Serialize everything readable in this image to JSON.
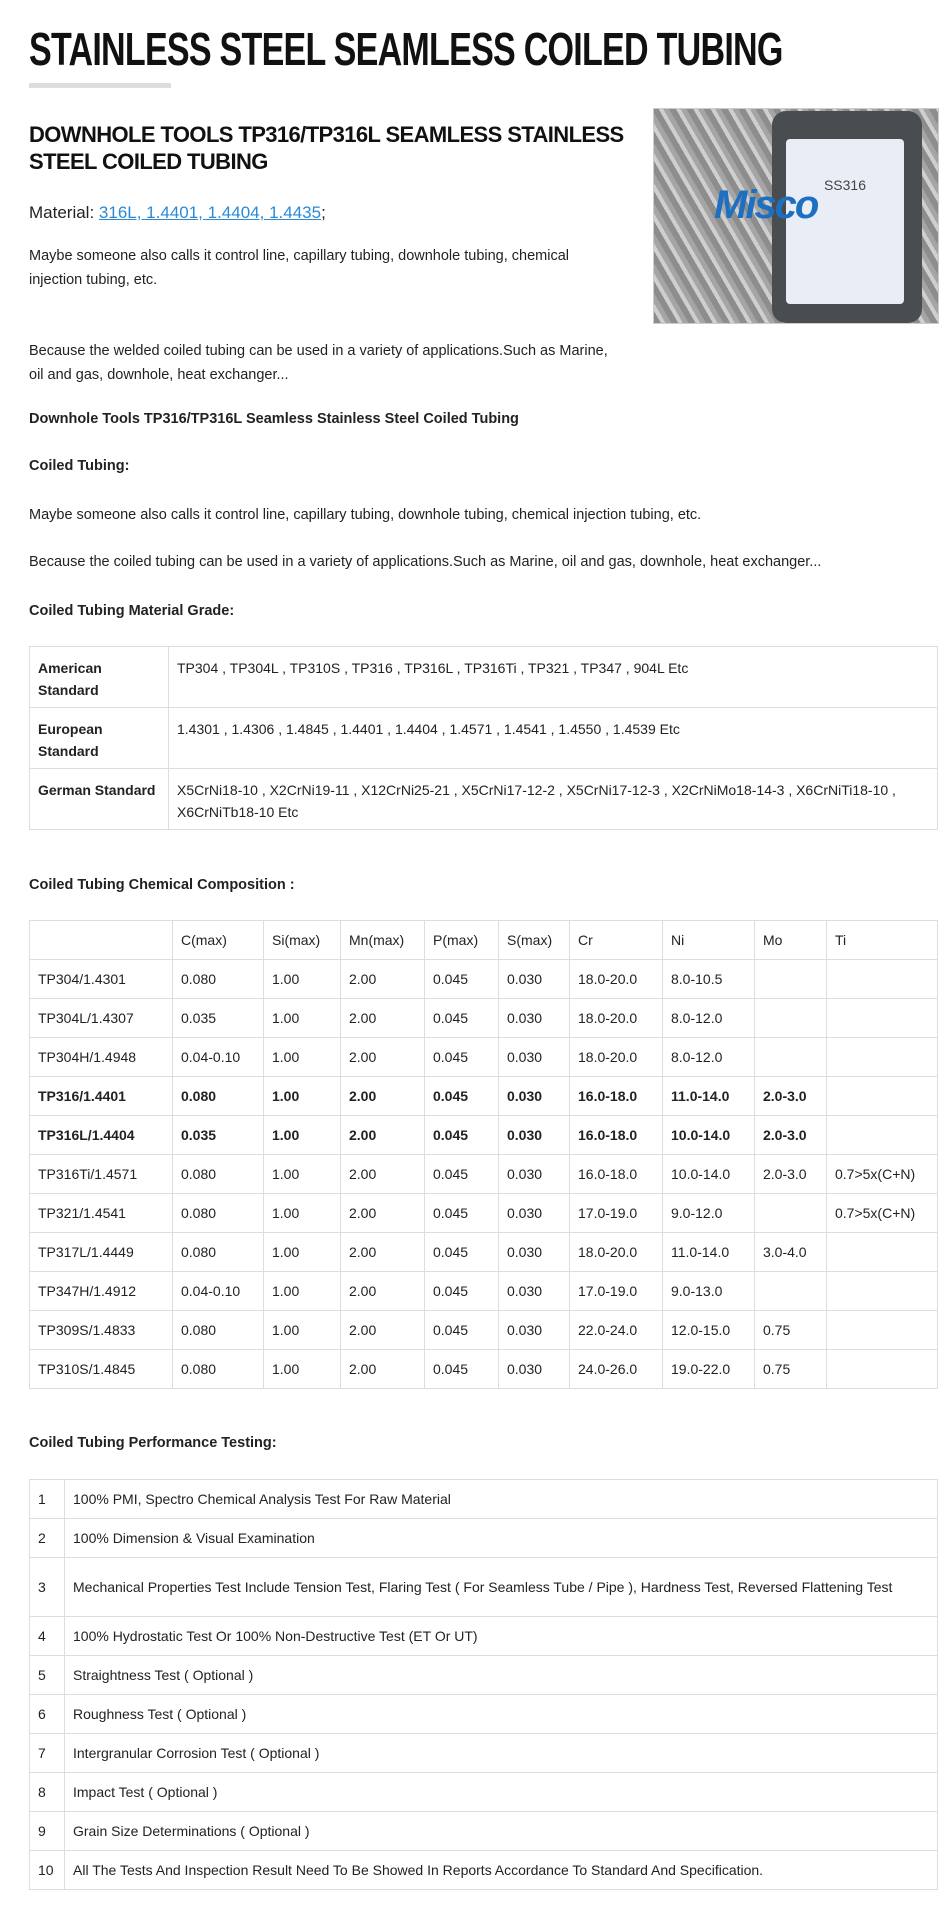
{
  "page_title": "STAINLESS STEEL SEAMLESS COILED TUBING",
  "product_title": "DOWNHOLE TOOLS TP316/TP316L SEAMLESS STAINLESS STEEL COILED TUBING",
  "material": {
    "label": "Material:",
    "link": "316L, 1.4401, 1.4404, 1.4435",
    "suffix": ";"
  },
  "intro": [
    "Maybe someone also calls it control line, capillary tubing, downhole tubing, chemical injection tubing, etc.",
    "Because the welded coiled tubing can be used in a variety of applications.Such as Marine, oil and gas, downhole, heat exchanger..."
  ],
  "image": {
    "logo_text": "Misco",
    "screen_text": "SS316"
  },
  "section_heading": "Downhole Tools TP316/TP316L Seamless Stainless Steel Coiled Tubing",
  "coiled_heading": "Coiled Tubing:",
  "coiled_paras": [
    "Maybe someone also calls it control line, capillary tubing, downhole tubing, chemical injection tubing, etc.",
    "Because the coiled tubing can be used in a variety of applications.Such as Marine, oil and gas, downhole, heat exchanger..."
  ],
  "grade_heading": "Coiled Tubing Material Grade:",
  "grade_rows": [
    [
      "American Standard",
      "TP304 , TP304L , TP310S , TP316 , TP316L , TP316Ti , TP321 , TP347 , 904L Etc"
    ],
    [
      "European Standard",
      "1.4301 , 1.4306 , 1.4845 , 1.4401 , 1.4404 , 1.4571 , 1.4541 , 1.4550 , 1.4539 Etc"
    ],
    [
      "German Standard",
      "X5CrNi18-10 , X2CrNi19-11 , X12CrNi25-21 , X5CrNi17-12-2 , X5CrNi17-12-3 , X2CrNiMo18-14-3 , X6CrNiTi18-10 , X6CrNiTb18-10 Etc"
    ]
  ],
  "chem_heading": "Coiled Tubing Chemical Composition :",
  "chem_headers": [
    "",
    "C(max)",
    "Si(max)",
    "Mn(max)",
    "P(max)",
    "S(max)",
    "Cr",
    "Ni",
    "Mo",
    "Ti"
  ],
  "chem_rows": [
    [
      "TP304/1.4301",
      "0.080",
      "1.00",
      "2.00",
      "0.045",
      "0.030",
      "18.0-20.0",
      "8.0-10.5",
      "",
      ""
    ],
    [
      "TP304L/1.4307",
      "0.035",
      "1.00",
      "2.00",
      "0.045",
      "0.030",
      "18.0-20.0",
      "8.0-12.0",
      "",
      ""
    ],
    [
      "TP304H/1.4948",
      "0.04-0.10",
      "1.00",
      "2.00",
      "0.045",
      "0.030",
      "18.0-20.0",
      "8.0-12.0",
      "",
      ""
    ],
    [
      "TP316/1.4401",
      "0.080",
      "1.00",
      "2.00",
      "0.045",
      "0.030",
      "16.0-18.0",
      "11.0-14.0",
      "2.0-3.0",
      ""
    ],
    [
      "TP316L/1.4404",
      "0.035",
      "1.00",
      "2.00",
      "0.045",
      "0.030",
      "16.0-18.0",
      "10.0-14.0",
      "2.0-3.0",
      ""
    ],
    [
      "TP316Ti/1.4571",
      "0.080",
      "1.00",
      "2.00",
      "0.045",
      "0.030",
      "16.0-18.0",
      "10.0-14.0",
      "2.0-3.0",
      "0.7>5x(C+N)"
    ],
    [
      "TP321/1.4541",
      "0.080",
      "1.00",
      "2.00",
      "0.045",
      "0.030",
      "17.0-19.0",
      "9.0-12.0",
      "",
      "0.7>5x(C+N)"
    ],
    [
      "TP317L/1.4449",
      "0.080",
      "1.00",
      "2.00",
      "0.045",
      "0.030",
      "18.0-20.0",
      "11.0-14.0",
      "3.0-4.0",
      ""
    ],
    [
      "TP347H/1.4912",
      "0.04-0.10",
      "1.00",
      "2.00",
      "0.045",
      "0.030",
      "17.0-19.0",
      "9.0-13.0",
      "",
      ""
    ],
    [
      "TP309S/1.4833",
      "0.080",
      "1.00",
      "2.00",
      "0.045",
      "0.030",
      "22.0-24.0",
      "12.0-15.0",
      "0.75",
      ""
    ],
    [
      "TP310S/1.4845",
      "0.080",
      "1.00",
      "2.00",
      "0.045",
      "0.030",
      "24.0-26.0",
      "19.0-22.0",
      "0.75",
      ""
    ]
  ],
  "chem_bold_rows": [
    3,
    4
  ],
  "perf_heading": "Coiled Tubing Performance Testing:",
  "perf_rows": [
    [
      "1",
      "100% PMI, Spectro Chemical Analysis Test For Raw Material"
    ],
    [
      "2",
      "100% Dimension & Visual Examination"
    ],
    [
      "3",
      "Mechanical Properties Test Include Tension Test, Flaring Test ( For Seamless Tube / Pipe ), Hardness Test, Reversed Flattening Test"
    ],
    [
      "4",
      "100% Hydrostatic Test Or 100% Non-Destructive Test (ET Or UT)"
    ],
    [
      "5",
      "Straightness Test ( Optional )"
    ],
    [
      "6",
      "Roughness Test ( Optional )"
    ],
    [
      "7",
      "Intergranular Corrosion Test ( Optional )"
    ],
    [
      "8",
      "Impact Test ( Optional )"
    ],
    [
      "9",
      "Grain Size Determinations ( Optional )"
    ],
    [
      "10",
      "All The Tests And Inspection Result Need To Be Showed In Reports Accordance To Standard And Specification."
    ]
  ],
  "colors": {
    "link": "#2a8ad6",
    "border": "#dddddd",
    "logo": "#1d6fc2"
  }
}
